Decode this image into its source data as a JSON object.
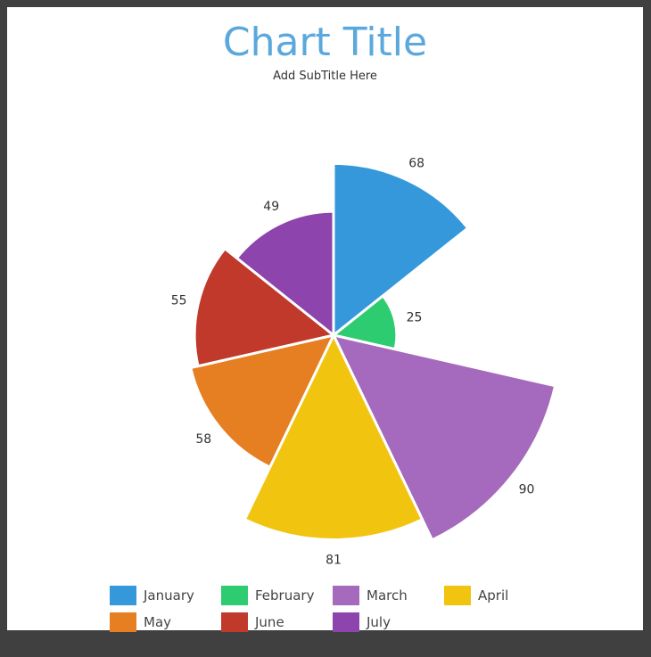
{
  "chart_data": {
    "type": "pie",
    "subtype": "variable-radius",
    "title": "Chart Title",
    "subtitle": "Add SubTitle Here",
    "categories": [
      "January",
      "February",
      "March",
      "April",
      "May",
      "June",
      "July"
    ],
    "values": [
      68,
      25,
      90,
      81,
      58,
      55,
      49
    ],
    "colors": [
      "#3498db",
      "#2ecc71",
      "#a569bd",
      "#f1c40f",
      "#e67e22",
      "#c0392b",
      "#8e44ad"
    ],
    "legend_position": "bottom"
  }
}
